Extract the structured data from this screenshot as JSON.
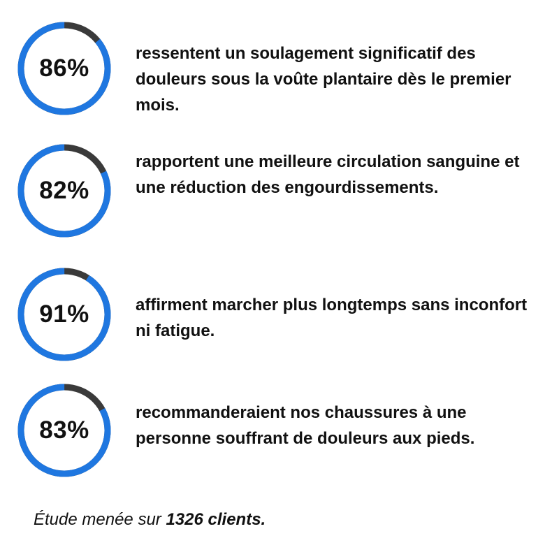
{
  "colors": {
    "ring_fill": "#1f77e0",
    "ring_track": "#3a3a3a",
    "text": "#111111"
  },
  "stats": [
    {
      "value": "86%",
      "percent": 86,
      "text": "ressentent un soulagement significatif des douleurs sous la voûte plantaire dès le premier mois."
    },
    {
      "value": "82%",
      "percent": 82,
      "text": "rapportent une meilleure circulation sanguine et une réduction des engourdissements."
    },
    {
      "value": "91%",
      "percent": 91,
      "text": "affirment marcher plus longtemps sans inconfort ni fatigue."
    },
    {
      "value": "83%",
      "percent": 83,
      "text": "recommanderaient nos chaussures à une personne souffrant de douleurs aux pieds."
    }
  ],
  "footnote": {
    "prefix": "Étude menée sur ",
    "emphasis": "1326 clients."
  }
}
